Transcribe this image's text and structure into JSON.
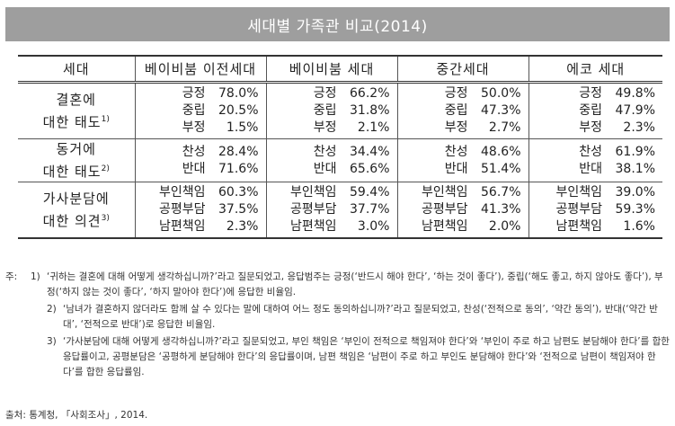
{
  "title": "세대별 가족관 비교(2014)",
  "table": {
    "headers": [
      "세대",
      "베이비붐 이전세대",
      "베이비붐 세대",
      "중간세대",
      "에코 세대"
    ],
    "groups": [
      {
        "label_line1": "결혼에",
        "label_line2": "대한 태도",
        "note_ref": "1)",
        "rows": [
          {
            "label": "긍정",
            "values": [
              "78.0%",
              "66.2%",
              "50.0%",
              "49.8%"
            ]
          },
          {
            "label": "중립",
            "values": [
              "20.5%",
              "31.8%",
              "47.3%",
              "47.9%"
            ]
          },
          {
            "label": "부정",
            "values": [
              "1.5%",
              "2.1%",
              "2.7%",
              "2.3%"
            ]
          }
        ]
      },
      {
        "label_line1": "동거에",
        "label_line2": "대한 태도",
        "note_ref": "2)",
        "rows": [
          {
            "label": "찬성",
            "values": [
              "28.4%",
              "34.4%",
              "48.6%",
              "61.9%"
            ]
          },
          {
            "label": "반대",
            "values": [
              "71.6%",
              "65.6%",
              "51.4%",
              "38.1%"
            ]
          }
        ]
      },
      {
        "label_line1": "가사분담에",
        "label_line2": "대한 의견",
        "note_ref": "3)",
        "rows": [
          {
            "label": "부인책임",
            "values": [
              "60.3%",
              "59.4%",
              "56.7%",
              "39.0%"
            ]
          },
          {
            "label": "공평부담",
            "values": [
              "37.5%",
              "37.7%",
              "41.3%",
              "59.3%"
            ]
          },
          {
            "label": "남편책임",
            "values": [
              "2.3%",
              "3.0%",
              "2.0%",
              "1.6%"
            ]
          }
        ]
      }
    ]
  },
  "notes": {
    "prefix": "주:",
    "items": [
      {
        "num": "1)",
        "text": "‘귀하는 결혼에 대해 어떻게 생각하십니까?’라고 질문되었고, 응답범주는 긍정(‘반드시 해야 한다’, ‘하는 것이 좋다’), 중립(‘해도 좋고, 하지 않아도 좋다’), 부정(‘하지 않는 것이 좋다’, ‘하지 말아야 한다’)에 응답한 비율임."
      },
      {
        "num": "2)",
        "text": "‘남녀가 결혼하지 않더라도 함께 살 수 있다는 말에 대하여 어느 정도 동의하십니까?’라고 질문되었고, 찬성(‘전적으로 동의’, ‘약간 동의’), 반대(‘약간 반대’, ‘전적으로 반대’)로 응답한 비율임."
      },
      {
        "num": "3)",
        "text": "‘가사분담에 대해 어떻게 생각하십니까?’라고 질문되었고, 부인 책임은 ‘부인이 전적으로 책임져야 한다’와 ‘부인이 주로 하고 남편도 분담해야 한다’를 합한 응답률이고, 공평분담은 ‘공평하게 분담해야 한다’의 응답률이며, 남편 책임은 ‘남편이 주로 하고 부인도 분담해야 한다’와 ‘전적으로 남편이 책임져야 한다’를 합한 응답률임."
      }
    ]
  },
  "source": "출처: 통계청, 「사회조사」, 2014."
}
